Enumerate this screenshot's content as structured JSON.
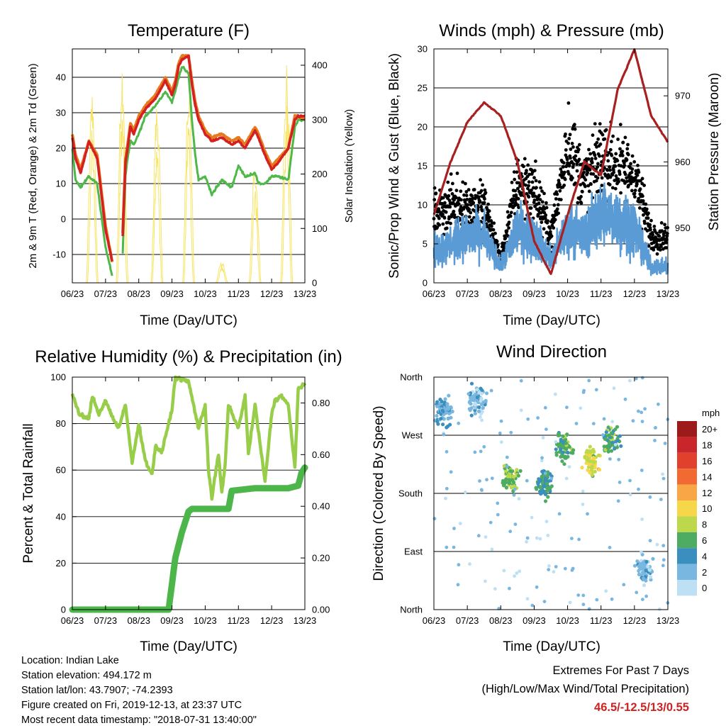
{
  "info": {
    "location": "Location: Indian Lake",
    "elevation": "Station elevation: 494.172 m",
    "latlon": "Station lat/lon: 43.7907; -74.2393",
    "created": "Figure created on Fri, 2019-12-13, at 23:37 UTC",
    "recent": "Most recent data timestamp: \"2018-07-31 13:40:00\""
  },
  "extremes": {
    "title": "Extremes For Past 7 Days",
    "subtitle": "(High/Low/Max Wind/Total Precipitation)",
    "values": "46.5/-12.5/13/0.55"
  },
  "colors": {
    "temp2m": "#e87a1e",
    "temp9m": "#d4201e",
    "dew": "#4eb848",
    "solar": "#f7e463",
    "wind": "#5b9bd5",
    "gust": "#000000",
    "pressure": "#a82020",
    "rh": "#98cd4a",
    "precip": "#4cb64a"
  },
  "chart_data": [
    {
      "type": "line",
      "title": "Temperature (F)",
      "xlabel": "Time (Day/UTC)",
      "ylabel": "2m & 9m T (Red, Orange) & 2m Td (Green)",
      "y2label": "Solar Insolation (Yellow)",
      "x_ticks": [
        "06/23",
        "07/23",
        "08/23",
        "09/23",
        "10/23",
        "11/23",
        "12/23",
        "13/23"
      ],
      "ylim": [
        -18,
        48
      ],
      "y_ticks": [
        -10,
        0,
        10,
        20,
        30,
        40
      ],
      "y2lim": [
        0,
        430
      ],
      "y2_ticks": [
        0,
        100,
        200,
        300,
        400
      ],
      "grid": true,
      "x_day": [
        0.0,
        0.1,
        0.25,
        0.5,
        0.75,
        1.0,
        1.2,
        1.4,
        1.5,
        1.6,
        1.65,
        1.75,
        1.85,
        2.0,
        2.2,
        2.5,
        2.8,
        3.0,
        3.1,
        3.2,
        3.3,
        3.5,
        3.6,
        3.7,
        3.8,
        4.0,
        4.2,
        4.5,
        4.8,
        5.0,
        5.2,
        5.5,
        5.6,
        5.8,
        6.0,
        6.2,
        6.5,
        6.7,
        6.8,
        7.0
      ],
      "series": [
        {
          "key": "t9m",
          "values": [
            23,
            17,
            13,
            22,
            17,
            -3,
            -12,
            null,
            -9,
            16,
            19,
            26,
            24,
            28,
            31,
            34,
            39,
            35,
            38,
            43,
            45,
            46,
            38,
            32,
            28,
            24,
            22,
            23,
            21,
            22,
            20,
            25,
            23,
            18,
            14,
            16,
            20,
            28,
            29,
            29
          ]
        },
        {
          "key": "t2m",
          "values": [
            24,
            18,
            14,
            22,
            18,
            -2,
            -12,
            null,
            -8,
            17,
            20,
            27,
            25,
            29,
            32,
            35,
            40,
            36,
            39,
            44,
            46,
            46,
            39,
            33,
            29,
            25,
            23,
            24,
            22,
            23,
            21,
            26,
            24,
            19,
            15,
            17,
            20,
            29,
            29,
            28
          ]
        },
        {
          "key": "td",
          "values": [
            20,
            11,
            9,
            12,
            10,
            -8,
            -16,
            null,
            -14,
            12,
            16,
            22,
            21,
            24,
            29,
            32,
            36,
            33,
            36,
            40,
            43,
            41,
            28,
            18,
            11,
            12,
            7,
            11,
            9,
            15,
            12,
            13,
            10,
            10,
            12,
            12,
            11,
            26,
            28,
            28
          ]
        },
        {
          "key": "solar",
          "peak_days": [
            0.6,
            1.5,
            2.55,
            3.5,
            4.5,
            5.5,
            6.45
          ],
          "peak_values": [
            360,
            420,
            340,
            395,
            40,
            230,
            415
          ]
        }
      ]
    },
    {
      "type": "scatter",
      "title": "Winds (mph) & Pressure (mb)",
      "xlabel": "Time (Day/UTC)",
      "ylabel": "Sonic/Prop Wind & Gust (Blue, Black)",
      "y2label": "Station Pressure (Maroon)",
      "x_ticks": [
        "06/23",
        "07/23",
        "08/23",
        "09/23",
        "10/23",
        "11/23",
        "12/23",
        "13/23"
      ],
      "ylim": [
        0,
        30
      ],
      "y_ticks": [
        0,
        5,
        10,
        15,
        20,
        25,
        30
      ],
      "y2lim": [
        941.7,
        977.1
      ],
      "y2_ticks": [
        950,
        960,
        970
      ],
      "grid": true,
      "x_day": [
        0.0,
        0.5,
        1.0,
        1.5,
        2.0,
        2.5,
        3.0,
        3.5,
        4.0,
        4.5,
        5.0,
        5.5,
        6.0,
        6.5,
        7.0
      ],
      "series": [
        {
          "key": "wind",
          "values": [
            4,
            5,
            6,
            6,
            2,
            7,
            6,
            3,
            7,
            6,
            9,
            8,
            7,
            2,
            2
          ]
        },
        {
          "key": "gust",
          "values": [
            9,
            10,
            10,
            10,
            3,
            13,
            12,
            6,
            18,
            13,
            16,
            15,
            14,
            6,
            6
          ]
        },
        {
          "key": "pressure",
          "values": [
            952,
            960,
            966,
            969,
            967,
            960,
            948,
            943,
            952,
            960,
            958,
            971,
            977,
            967,
            963
          ]
        }
      ]
    },
    {
      "type": "line",
      "title": "Relative Humidity (%) & Precipitation (in)",
      "xlabel": "Time (Day/UTC)",
      "ylabel": "Percent & Total Rainfall",
      "x_ticks": [
        "06/23",
        "07/23",
        "08/23",
        "09/23",
        "10/23",
        "11/23",
        "12/23",
        "13/23"
      ],
      "ylim": [
        0,
        100
      ],
      "y_ticks": [
        0,
        20,
        40,
        60,
        80,
        100
      ],
      "y2lim": [
        0,
        0.9
      ],
      "y2_ticks": [
        "0.00",
        "0.20",
        "0.40",
        "0.60",
        "0.80"
      ],
      "y2_values": [
        0,
        0.2,
        0.4,
        0.6,
        0.8
      ],
      "grid": true,
      "series": [
        {
          "key": "rh",
          "x_day": [
            0.0,
            0.2,
            0.5,
            0.6,
            0.8,
            1.0,
            1.2,
            1.4,
            1.6,
            1.8,
            2.0,
            2.2,
            2.4,
            2.5,
            2.7,
            3.0,
            3.1,
            3.3,
            3.5,
            3.8,
            4.0,
            4.1,
            4.2,
            4.4,
            4.5,
            4.6,
            4.7,
            5.0,
            5.2,
            5.3,
            5.5,
            5.8,
            6.0,
            6.1,
            6.3,
            6.5,
            6.7,
            6.8,
            7.0
          ],
          "values": [
            93,
            84,
            82,
            92,
            84,
            90,
            83,
            78,
            88,
            63,
            80,
            64,
            58,
            70,
            68,
            86,
            100,
            99,
            98,
            78,
            88,
            60,
            48,
            67,
            50,
            62,
            88,
            78,
            92,
            67,
            88,
            55,
            84,
            90,
            92,
            88,
            61,
            95,
            97
          ]
        },
        {
          "key": "precip",
          "x_day": [
            0.0,
            2.9,
            3.0,
            3.1,
            3.3,
            3.5,
            3.6,
            4.0,
            4.5,
            4.7,
            4.8,
            5.5,
            6.0,
            6.5,
            6.8,
            6.9,
            7.0
          ],
          "values": [
            0,
            0,
            0.1,
            0.2,
            0.3,
            0.38,
            0.39,
            0.39,
            0.39,
            0.39,
            0.46,
            0.47,
            0.47,
            0.47,
            0.48,
            0.53,
            0.55
          ]
        }
      ]
    },
    {
      "type": "scatter",
      "title": "Wind Direction",
      "xlabel": "Time (Day/UTC)",
      "ylabel": "Direction (Colored By Speed)",
      "x_ticks": [
        "06/23",
        "07/23",
        "08/23",
        "09/23",
        "10/23",
        "11/23",
        "12/23",
        "13/23"
      ],
      "y_ticks": [
        "North",
        "East",
        "South",
        "West",
        "North"
      ],
      "ylim": [
        0,
        360
      ],
      "grid": true,
      "legend": "right",
      "colorbar_title": "mph",
      "colorbar_labels": [
        "20+",
        "18",
        "16",
        "14",
        "12",
        "10",
        "8",
        "6",
        "4",
        "2",
        "0"
      ],
      "colorbar_colors": [
        "#9e1a1a",
        "#c8262a",
        "#e0402c",
        "#f06a32",
        "#f8a646",
        "#f7d74a",
        "#bdd84a",
        "#4eab62",
        "#3a8fbe",
        "#7ab7e0",
        "#bde0f5"
      ],
      "clusters": [
        {
          "day": 0.3,
          "dir": 305,
          "speed": 3
        },
        {
          "day": 1.3,
          "dir": 325,
          "speed": 2
        },
        {
          "day": 2.3,
          "dir": 205,
          "speed": 7
        },
        {
          "day": 3.3,
          "dir": 195,
          "speed": 5
        },
        {
          "day": 3.9,
          "dir": 252,
          "speed": 6
        },
        {
          "day": 4.7,
          "dir": 230,
          "speed": 9
        },
        {
          "day": 5.3,
          "dir": 265,
          "speed": 6
        },
        {
          "day": 6.3,
          "dir": 60,
          "speed": 2
        }
      ]
    }
  ]
}
